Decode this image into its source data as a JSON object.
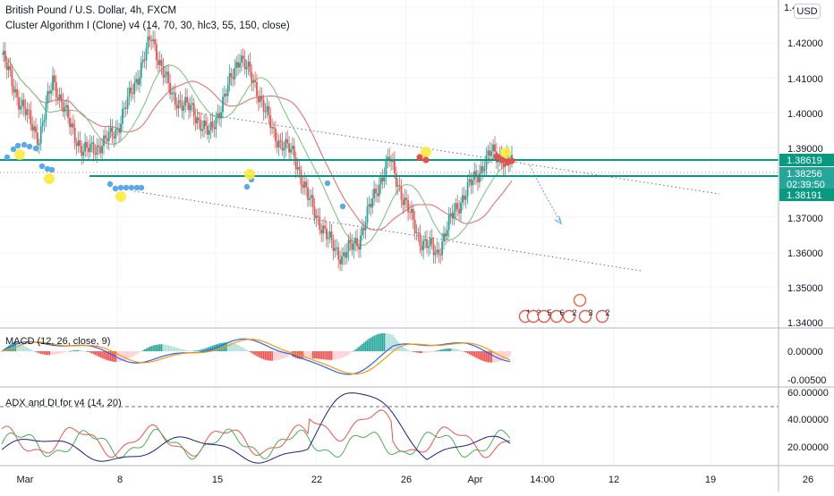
{
  "header": {
    "symbol_title": "British Pound / U.S. Dollar, 4h, FXCM",
    "indicator_title": "Cluster Algorithm I (Clone) v4 (14, 70, 30, hlc3, 55, 150, close)",
    "currency_button": "USD"
  },
  "macd_title": "MACD (12, 26, close, 9)",
  "adx_title": "ADX and DI for v4 (14, 20)",
  "colors": {
    "up": "#26a69a",
    "down": "#ef5350",
    "teal_line": "#089981",
    "ema_red": "#e57373",
    "ema_green": "#81c784",
    "macd_line": "#2962ff",
    "signal_line": "#ff9800",
    "buy_dot": "#5aa9ee",
    "sell_dot": "#ef4d4d",
    "yellow_dot": "#ffeb3b",
    "adx_line": "#1a237e",
    "di_plus": "#4caf50",
    "di_minus": "#ef5350"
  },
  "price_axis": {
    "top_label": "1.4",
    "labels": [
      "1.42000",
      "1.41000",
      "1.40000",
      "1.39000",
      "1.37000",
      "1.36000",
      "1.35000",
      "1.34000"
    ],
    "badges": [
      {
        "text": "1.38619",
        "color": "#089981"
      },
      {
        "text": "1.38256",
        "color": "#26a69a"
      },
      {
        "text": "02:39:50",
        "color": "#26a69a"
      },
      {
        "text": "1.38191",
        "color": "#089981"
      }
    ]
  },
  "macd_axis": {
    "labels": [
      "0.00000",
      "-0.00500"
    ]
  },
  "adx_axis": {
    "labels": [
      "60.00000",
      "40.00000",
      "20.00000"
    ]
  },
  "time_axis": {
    "labels": [
      "Mar",
      "8",
      "15",
      "22",
      "26",
      "Apr",
      "14:00",
      "12",
      "19",
      "26"
    ]
  },
  "event_badges": {
    "lower_labels": [
      "14",
      "3",
      "5",
      "6",
      "2",
      "3",
      "2"
    ]
  }
}
